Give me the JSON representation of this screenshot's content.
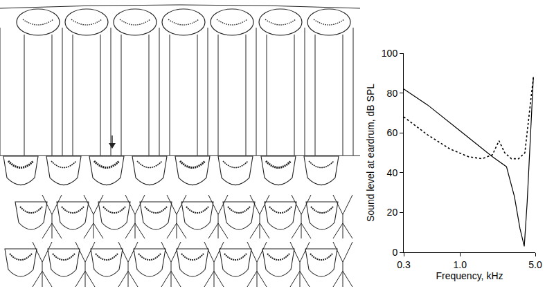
{
  "chart_data": {
    "type": "line",
    "x_label": "Frequency, kHz",
    "y_label": "Sound level at eardrum, dB SPL",
    "log": "x",
    "xlim": [
      0.3,
      5.0
    ],
    "xticks": [
      0.3,
      {
        "value": 1.0,
        "label": "1.0"
      },
      {
        "value": 5.0,
        "label": "5.0"
      }
    ],
    "ylim": [
      0,
      100
    ],
    "yticks": [
      0,
      20,
      40,
      60,
      80,
      100
    ],
    "grid": false,
    "series": [
      {
        "color": "#000000",
        "line_style": "solid",
        "x": [
          0.3,
          0.5,
          1.0,
          2.0,
          2.7,
          3.2,
          3.6,
          3.95,
          4.2,
          4.5,
          4.8
        ],
        "values": [
          82,
          74,
          61,
          48,
          43,
          28,
          12,
          3,
          25,
          60,
          88
        ]
      },
      {
        "color": "#000000",
        "line_style": "dotted",
        "x": [
          0.3,
          0.5,
          0.8,
          1.2,
          1.6,
          2.0,
          2.3,
          2.6,
          3.0,
          3.5,
          4.0,
          4.3,
          4.6,
          4.8
        ],
        "values": [
          68,
          59,
          52,
          48,
          47,
          49,
          56,
          50,
          47,
          47,
          50,
          65,
          80,
          88
        ]
      }
    ]
  }
}
